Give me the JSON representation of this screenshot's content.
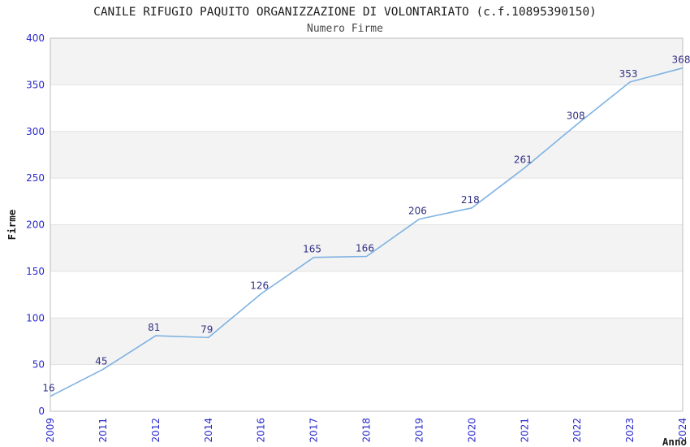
{
  "chart": {
    "title": "CANILE RIFUGIO PAQUITO ORGANIZZAZIONE DI VOLONTARIATO (c.f.10895390150)",
    "subtitle": "Numero Firme"
  },
  "chart_data": {
    "type": "line",
    "title": "CANILE RIFUGIO PAQUITO ORGANIZZAZIONE DI VOLONTARIATO (c.f.10895390150)",
    "subtitle": "Numero Firme",
    "categories": [
      "2009",
      "2011",
      "2012",
      "2014",
      "2016",
      "2017",
      "2018",
      "2019",
      "2020",
      "2021",
      "2022",
      "2023",
      "2024"
    ],
    "values": [
      16,
      45,
      81,
      79,
      126,
      165,
      166,
      206,
      218,
      261,
      308,
      353,
      368
    ],
    "xlabel": "Anno",
    "ylabel": "Firme",
    "ylim": [
      0,
      400
    ],
    "yticks": [
      0,
      50,
      100,
      150,
      200,
      250,
      300,
      350,
      400
    ],
    "grid": "alternating-horizontal-bands",
    "legend": "none",
    "data_labels_shown": true,
    "colors": {
      "line": "#7fb2e2",
      "tick_labels": "#2929cc",
      "data_labels": "#313183",
      "band_fill": "#f3f3f3",
      "grid_line": "#e2e2e2",
      "plot_border": "#bdbdbd",
      "title": "#1c1c1c",
      "subtitle": "#4a4a4a",
      "axis_titles": "#1c1c1c",
      "background": "#ffffff"
    }
  }
}
